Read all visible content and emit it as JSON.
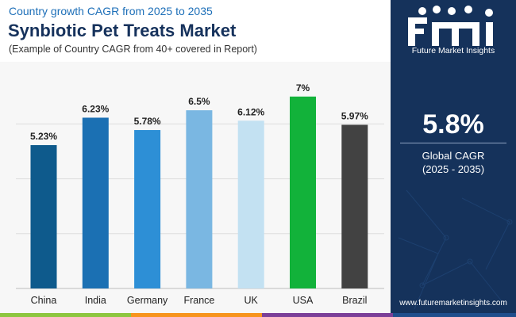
{
  "header": {
    "subtitle": "Country growth CAGR from 2025 to 2035",
    "title": "Synbiotic Pet Treats Market",
    "note": "(Example of Country CAGR from 40+ covered in Report)"
  },
  "chart_data": {
    "type": "bar",
    "title": "Synbiotic Pet Treats Market",
    "subtitle": "Country growth CAGR from 2025 to 2035",
    "categories": [
      "China",
      "India",
      "Germany",
      "France",
      "UK",
      "USA",
      "Brazil"
    ],
    "values": [
      5.23,
      6.23,
      5.78,
      6.5,
      6.12,
      7,
      5.97
    ],
    "labels": [
      "5.23%",
      "6.23%",
      "5.78%",
      "6.5%",
      "6.12%",
      "7%",
      "5.97%"
    ],
    "colors": [
      "#0e5a8c",
      "#1b70b3",
      "#2d8fd6",
      "#7ab7e2",
      "#c3e1f2",
      "#12b23a",
      "#424242"
    ],
    "ylim": [
      0,
      7.4
    ],
    "gridlines": [
      0,
      2,
      4,
      6
    ],
    "xlabel": "",
    "ylabel": "",
    "legend": "none"
  },
  "sidebar": {
    "brand": "Future Market Insights",
    "kpi_value": "5.8%",
    "kpi_label": "Global CAGR",
    "kpi_period": "(2025 - 2035)",
    "website": "www.futuremarketinsights.com"
  },
  "stripe_colors": [
    "#8dc63f",
    "#f7941d",
    "#7b3f98",
    "#1f4e8c"
  ]
}
